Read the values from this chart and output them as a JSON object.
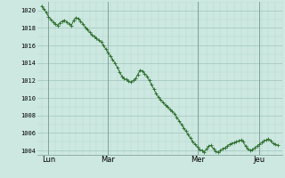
{
  "background_color": "#cce8e0",
  "grid_color_minor": "#b8d8d0",
  "grid_color_major": "#a0c4bc",
  "line_color": "#2d6e2d",
  "marker_color": "#2d6e2d",
  "ylim": [
    1003.5,
    1021.0
  ],
  "x_labels": [
    "Lun",
    "Mar",
    "Mer",
    "Jeu"
  ],
  "figsize": [
    3.2,
    2.0
  ],
  "dpi": 100,
  "values": [
    1020.5,
    1020.2,
    1019.8,
    1019.3,
    1019.0,
    1018.7,
    1018.5,
    1018.3,
    1018.6,
    1018.8,
    1018.9,
    1018.7,
    1018.5,
    1018.3,
    1018.9,
    1019.2,
    1019.1,
    1018.8,
    1018.5,
    1018.1,
    1017.8,
    1017.5,
    1017.2,
    1017.0,
    1016.8,
    1016.6,
    1016.4,
    1016.0,
    1015.6,
    1015.2,
    1014.8,
    1014.4,
    1014.0,
    1013.5,
    1013.0,
    1012.5,
    1012.2,
    1012.1,
    1011.9,
    1011.8,
    1012.0,
    1012.2,
    1012.7,
    1013.2,
    1013.1,
    1012.8,
    1012.5,
    1012.0,
    1011.5,
    1011.0,
    1010.5,
    1010.1,
    1009.8,
    1009.5,
    1009.2,
    1009.0,
    1008.7,
    1008.5,
    1008.2,
    1007.8,
    1007.4,
    1007.0,
    1006.6,
    1006.2,
    1005.8,
    1005.4,
    1005.0,
    1004.7,
    1004.4,
    1004.1,
    1004.0,
    1003.8,
    1004.2,
    1004.5,
    1004.6,
    1004.2,
    1003.9,
    1003.8,
    1004.0,
    1004.2,
    1004.3,
    1004.5,
    1004.7,
    1004.8,
    1004.9,
    1005.0,
    1005.1,
    1005.2,
    1005.0,
    1004.5,
    1004.2,
    1004.0,
    1004.1,
    1004.3,
    1004.5,
    1004.7,
    1004.9,
    1005.1,
    1005.2,
    1005.3,
    1005.1,
    1004.8,
    1004.7,
    1004.6
  ]
}
